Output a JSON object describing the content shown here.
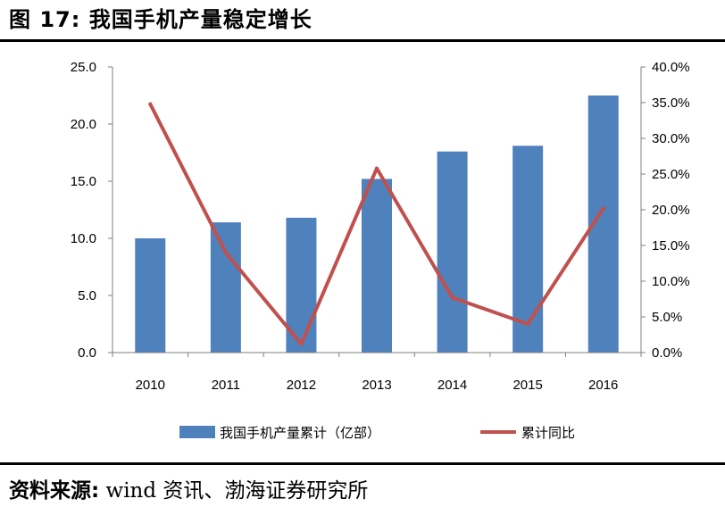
{
  "figure": {
    "title": "图 17:  我国手机产量稳定增长",
    "source_label": "资料来源:",
    "source_text": " wind 资讯、渤海证券研究所"
  },
  "colors": {
    "bar": "#4F81BD",
    "line": "#C0504D",
    "axis": "#7f7f7f",
    "text": "#000000"
  },
  "chart_data": {
    "type": "bar",
    "categories": [
      "2010",
      "2011",
      "2012",
      "2013",
      "2014",
      "2015",
      "2016"
    ],
    "series": [
      {
        "name": "我国手机产量累计（亿部）",
        "type": "bar",
        "axis": "left",
        "values": [
          10.0,
          11.4,
          11.8,
          15.2,
          17.6,
          18.1,
          22.5
        ]
      },
      {
        "name": "累计同比",
        "type": "line",
        "axis": "right",
        "values": [
          0.348,
          0.14,
          0.012,
          0.258,
          0.077,
          0.04,
          0.202
        ]
      }
    ],
    "y_left": {
      "range": [
        0,
        25
      ],
      "ticks": [
        0,
        5,
        10,
        15,
        20,
        25
      ],
      "tick_labels": [
        "0.0",
        "5.0",
        "10.0",
        "15.0",
        "20.0",
        "25.0"
      ]
    },
    "y_right": {
      "range": [
        0,
        0.4
      ],
      "ticks": [
        0,
        0.05,
        0.1,
        0.15,
        0.2,
        0.25,
        0.3,
        0.35,
        0.4
      ],
      "tick_labels": [
        "0.0%",
        "5.0%",
        "10.0%",
        "15.0%",
        "20.0%",
        "25.0%",
        "30.0%",
        "35.0%",
        "40.0%"
      ]
    },
    "grid": false,
    "legend_position": "bottom"
  }
}
